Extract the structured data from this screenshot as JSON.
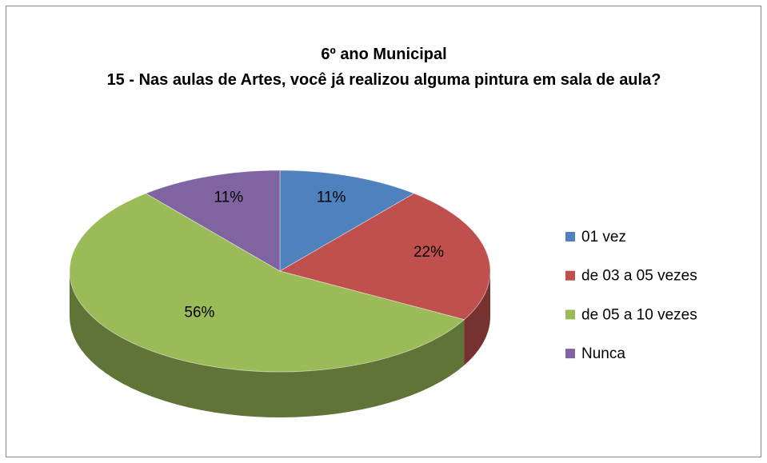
{
  "chart_data": {
    "type": "pie3d",
    "title": "6º ano Municipal",
    "subtitle": "15 - Nas aulas de Artes, você já realizou alguma pintura em sala de aula?",
    "categories": [
      "01 vez",
      "de 03 a 05 vezes",
      "de 05 a 10 vezes",
      "Nunca"
    ],
    "values": [
      11,
      22,
      56,
      11
    ],
    "value_labels": [
      "11%",
      "22%",
      "56%",
      "11%"
    ],
    "colors": [
      "#4f81bd",
      "#c0504d",
      "#9bbb59",
      "#8064a2"
    ],
    "legend": "right"
  }
}
